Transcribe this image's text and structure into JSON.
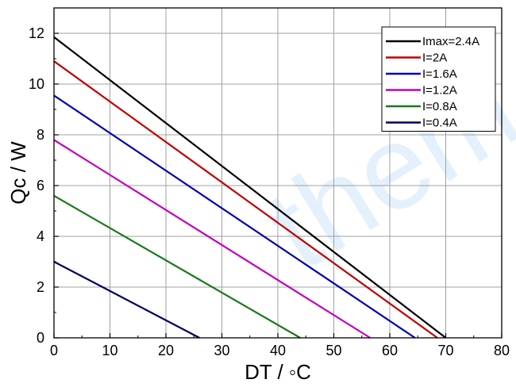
{
  "chart_data": {
    "type": "line",
    "title": "",
    "xlabel": "DT / ◦C",
    "ylabel": "Qc / W",
    "xlim": [
      0,
      80
    ],
    "ylim": [
      0,
      13
    ],
    "xticks": [
      0,
      10,
      20,
      30,
      40,
      50,
      60,
      70,
      80
    ],
    "yticks": [
      0,
      2,
      4,
      6,
      8,
      10,
      12
    ],
    "grid": true,
    "legend_position": "top-right",
    "watermark": "them",
    "series": [
      {
        "name": "Imax=2.4A",
        "color": "#000000",
        "x": [
          0,
          70
        ],
        "y": [
          11.85,
          0
        ]
      },
      {
        "name": "I=2A",
        "color": "#c00000",
        "x": [
          0,
          68.5
        ],
        "y": [
          10.9,
          0
        ]
      },
      {
        "name": "I=1.6A",
        "color": "#0000b4",
        "x": [
          0,
          64.5
        ],
        "y": [
          9.55,
          0
        ]
      },
      {
        "name": "I=1.2A",
        "color": "#c000c0",
        "x": [
          0,
          56.5
        ],
        "y": [
          7.8,
          0
        ]
      },
      {
        "name": "I=0.8A",
        "color": "#1a7a1a",
        "x": [
          0,
          44
        ],
        "y": [
          5.6,
          0
        ]
      },
      {
        "name": "I=0.4A",
        "color": "#000060",
        "x": [
          0,
          26
        ],
        "y": [
          3.0,
          0
        ]
      }
    ]
  }
}
